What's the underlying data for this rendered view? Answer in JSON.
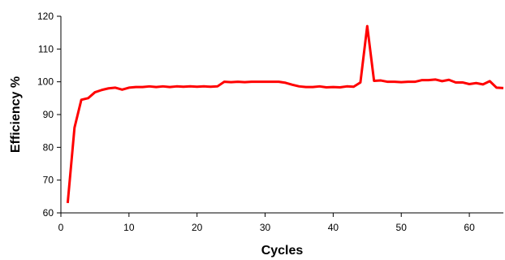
{
  "chart_data": {
    "type": "line",
    "title": "",
    "xlabel": "Cycles",
    "ylabel": "Efficiency %",
    "xlim": [
      0,
      65
    ],
    "ylim": [
      60,
      120
    ],
    "xticks": [
      0,
      10,
      20,
      30,
      40,
      50,
      60
    ],
    "yticks": [
      60,
      70,
      80,
      90,
      100,
      110,
      120
    ],
    "grid": false,
    "legend": "none",
    "series": [
      {
        "color": "#ff0000",
        "x": [
          1,
          2,
          3,
          4,
          5,
          6,
          7,
          8,
          9,
          10,
          11,
          12,
          13,
          14,
          15,
          16,
          17,
          18,
          19,
          20,
          21,
          22,
          23,
          24,
          25,
          26,
          27,
          28,
          29,
          30,
          31,
          32,
          33,
          34,
          35,
          36,
          37,
          38,
          39,
          40,
          41,
          42,
          43,
          44,
          45,
          46,
          47,
          48,
          49,
          50,
          51,
          52,
          53,
          54,
          55,
          56,
          57,
          58,
          59,
          60,
          61,
          62,
          63,
          64,
          65
        ],
        "values": [
          63,
          86,
          94.5,
          95,
          96.8,
          97.5,
          98,
          98.2,
          97.6,
          98.2,
          98.4,
          98.4,
          98.6,
          98.4,
          98.6,
          98.4,
          98.6,
          98.5,
          98.6,
          98.5,
          98.6,
          98.5,
          98.6,
          100,
          99.9,
          100,
          99.9,
          100,
          100,
          100,
          100,
          100,
          99.7,
          99.1,
          98.6,
          98.4,
          98.4,
          98.6,
          98.3,
          98.4,
          98.3,
          98.6,
          98.5,
          99.8,
          117,
          100.3,
          100.4,
          100,
          100,
          99.9,
          100,
          100,
          100.5,
          100.5,
          100.7,
          100.2,
          100.6,
          99.8,
          99.8,
          99.3,
          99.6,
          99.2,
          100.2,
          98.2,
          98.1
        ]
      }
    ]
  }
}
